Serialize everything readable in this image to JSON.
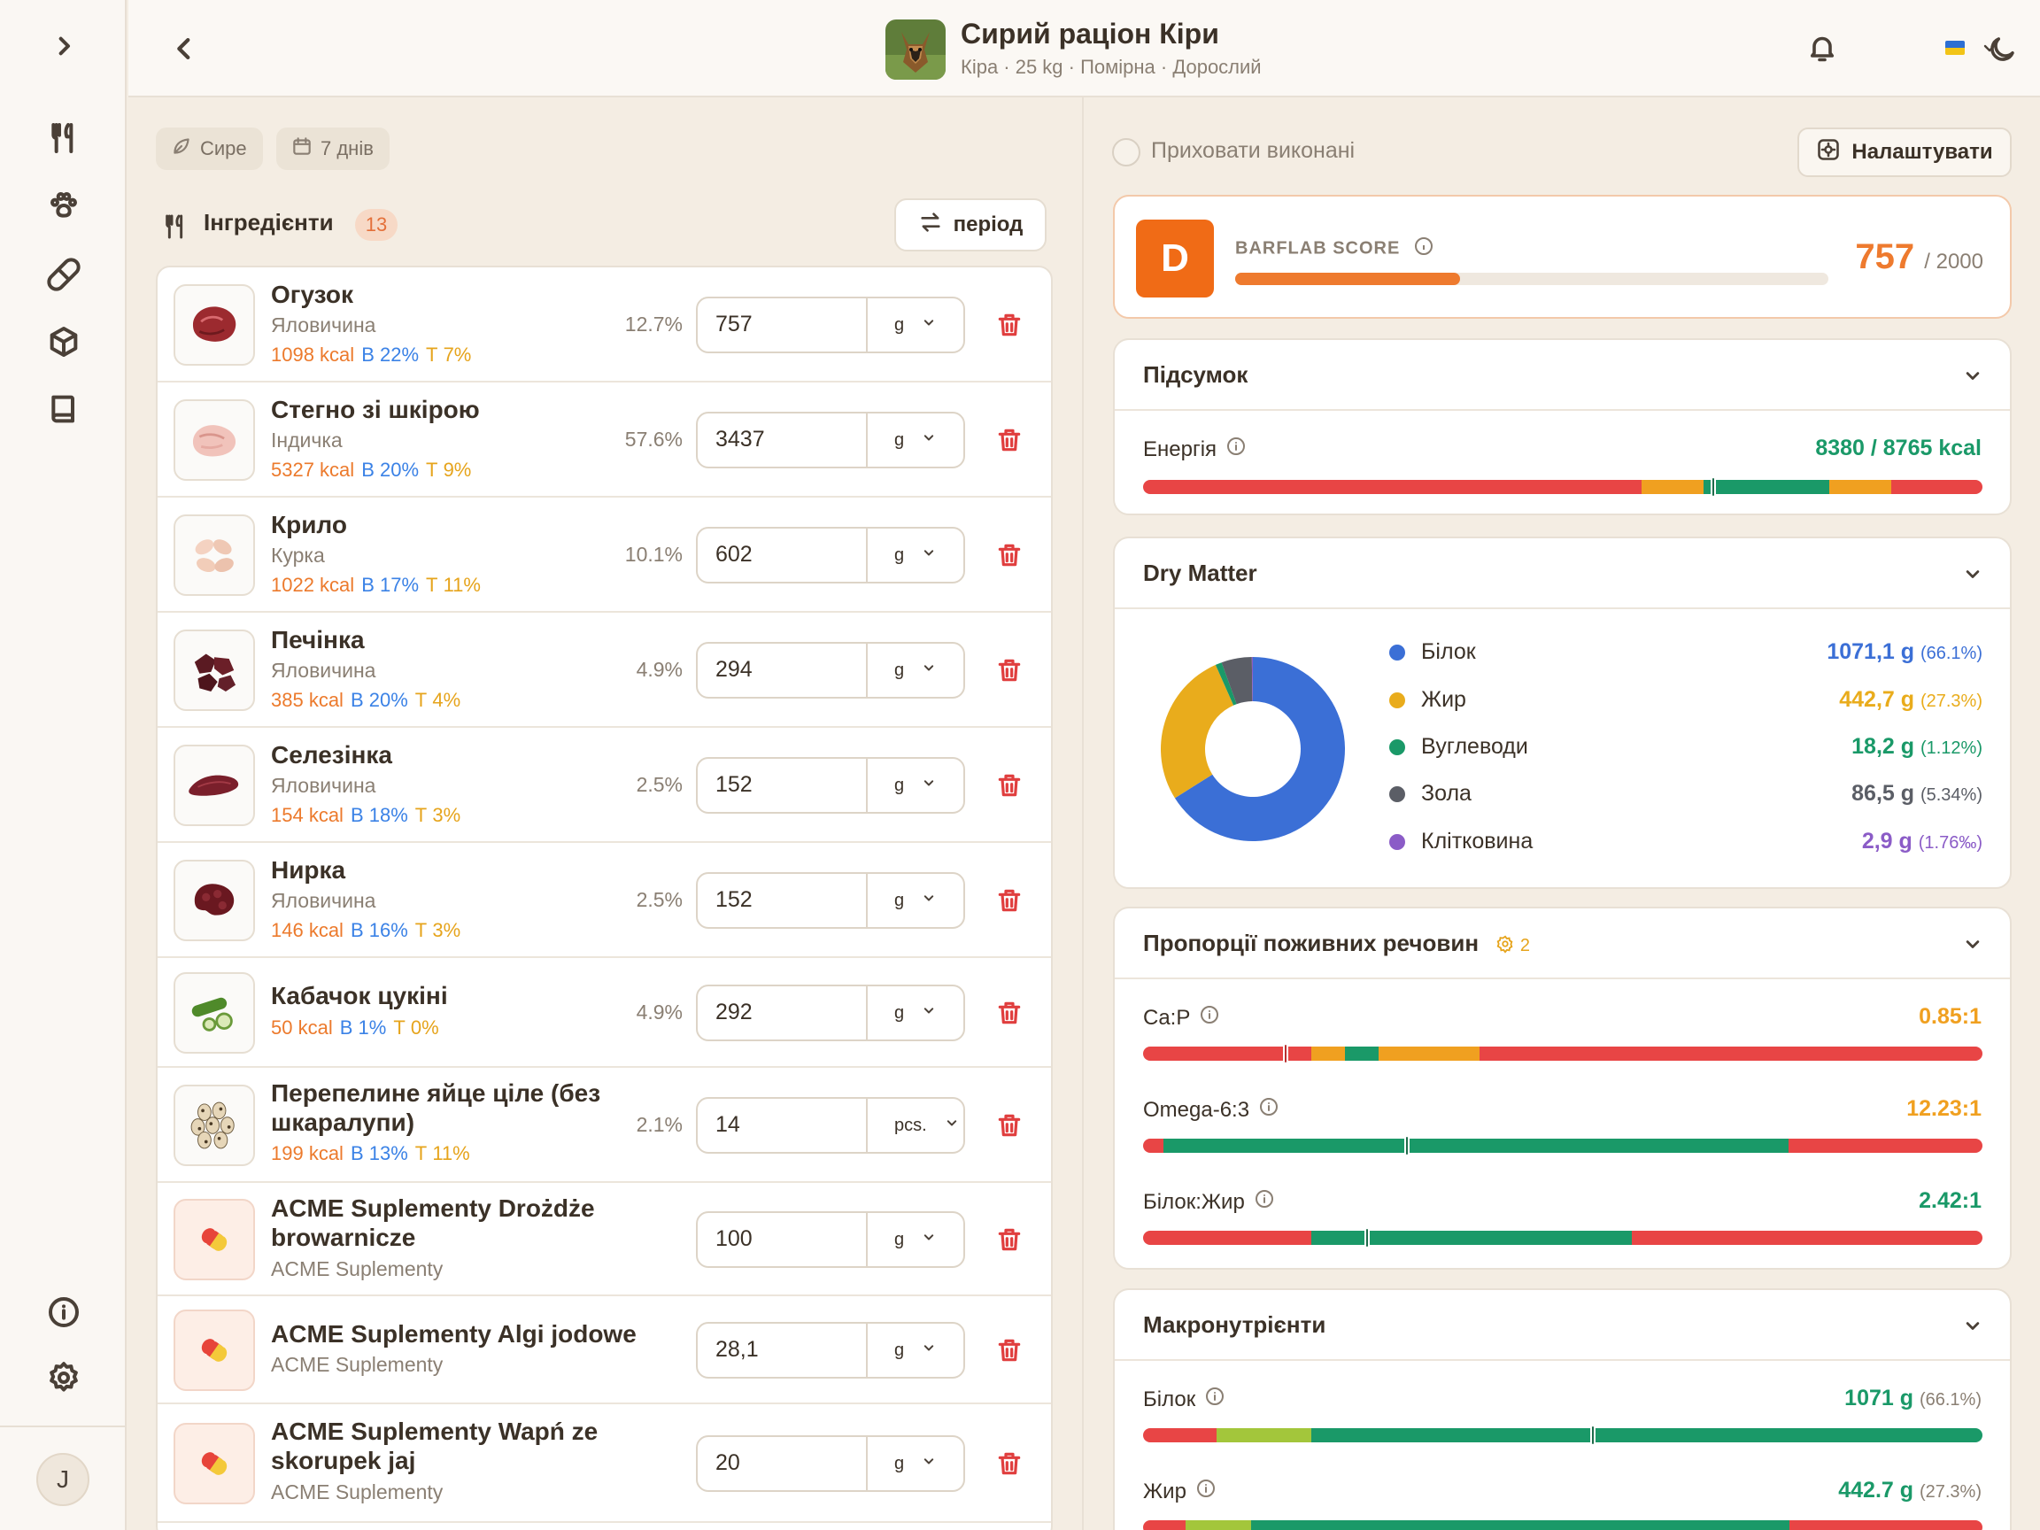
{
  "header": {
    "title": "Сирий раціон Кіри",
    "subtitle": "Кіра · 25 kg · Помірна · Дорослий"
  },
  "filters": {
    "type_chip": "Сире",
    "days_chip": "7 днів"
  },
  "ingredients": {
    "title": "Інгредієнти",
    "count": "13",
    "period_label": "період",
    "items": [
      {
        "name": "Огузок",
        "sub": "Яловичина",
        "kcal": "1098 kcal",
        "protein": "В 22%",
        "fat": "Т 7%",
        "pct": "12.7%",
        "qty": "757",
        "unit": "g",
        "thumb": "beef-icon"
      },
      {
        "name": "Стегно зі шкірою",
        "sub": "Індичка",
        "kcal": "5327 kcal",
        "protein": "В 20%",
        "fat": "Т 9%",
        "pct": "57.6%",
        "qty": "3437",
        "unit": "g",
        "thumb": "turkey-thigh-icon"
      },
      {
        "name": "Крило",
        "sub": "Курка",
        "kcal": "1022 kcal",
        "protein": "В 17%",
        "fat": "Т 11%",
        "pct": "10.1%",
        "qty": "602",
        "unit": "g",
        "thumb": "chicken-wing-icon"
      },
      {
        "name": "Печінка",
        "sub": "Яловичина",
        "kcal": "385 kcal",
        "protein": "В 20%",
        "fat": "Т 4%",
        "pct": "4.9%",
        "qty": "294",
        "unit": "g",
        "thumb": "liver-icon"
      },
      {
        "name": "Селезінка",
        "sub": "Яловичина",
        "kcal": "154 kcal",
        "protein": "В 18%",
        "fat": "Т 3%",
        "pct": "2.5%",
        "qty": "152",
        "unit": "g",
        "thumb": "spleen-icon"
      },
      {
        "name": "Нирка",
        "sub": "Яловичина",
        "kcal": "146 kcal",
        "protein": "В 16%",
        "fat": "Т 3%",
        "pct": "2.5%",
        "qty": "152",
        "unit": "g",
        "thumb": "kidney-icon"
      },
      {
        "name": "Кабачок цукіні",
        "sub": "",
        "kcal": "50 kcal",
        "protein": "В 1%",
        "fat": "Т 0%",
        "pct": "4.9%",
        "qty": "292",
        "unit": "g",
        "thumb": "zucchini-icon"
      },
      {
        "name": "Перепелине яйце ціле (без шкаралупи)",
        "sub": "",
        "kcal": "199 kcal",
        "protein": "В 13%",
        "fat": "Т 11%",
        "pct": "2.1%",
        "qty": "14",
        "unit": "pcs.",
        "thumb": "quail-eggs-icon"
      },
      {
        "name": "ACME Suplementy Drożdże browarnicze",
        "sub": "ACME Suplementy",
        "kcal": "",
        "protein": "",
        "fat": "",
        "pct": "",
        "qty": "100",
        "unit": "g",
        "thumb": "pill-icon"
      },
      {
        "name": "ACME Suplementy Algi jodowe",
        "sub": "ACME Suplementy",
        "kcal": "",
        "protein": "",
        "fat": "",
        "pct": "",
        "qty": "28,1",
        "unit": "g",
        "thumb": "pill-icon"
      },
      {
        "name": "ACME Suplementy Wapń ze skorupek jaj",
        "sub": "ACME Suplementy",
        "kcal": "",
        "protein": "",
        "fat": "",
        "pct": "",
        "qty": "20",
        "unit": "g",
        "thumb": "pill-icon"
      }
    ]
  },
  "right": {
    "hide_done_label": "Приховати виконані",
    "settings_label": "Налаштувати"
  },
  "score": {
    "grade": "D",
    "label": "BARFLAB SCORE",
    "value": "757",
    "max": "/ 2000",
    "fraction": 0.3785
  },
  "summary": {
    "title": "Підсумок",
    "energy_label": "Енергія",
    "energy_value": "8380 / 8765 kcal"
  },
  "dry_matter": {
    "title": "Dry Matter",
    "items": [
      {
        "name": "Білок",
        "value": "1071,1 g",
        "pct": "(66.1%)",
        "color": "#3b6fd6",
        "share": 66.1
      },
      {
        "name": "Жир",
        "value": "442,7 g",
        "pct": "(27.3%)",
        "color": "#e9ac1c",
        "share": 27.3
      },
      {
        "name": "Вуглеводи",
        "value": "18,2 g",
        "pct": "(1.12%)",
        "color": "#1a9968",
        "share": 1.12
      },
      {
        "name": "Зола",
        "value": "86,5 g",
        "pct": "(5.34%)",
        "color": "#5b5e66",
        "share": 5.34
      },
      {
        "name": "Клітковина",
        "value": "2,9 g",
        "pct": "(1.76‰)",
        "color": "#8b5cc7",
        "share": 0.18
      }
    ]
  },
  "ratios": {
    "title": "Пропорції поживних речовин",
    "badge": "2",
    "items": [
      {
        "label": "Ca:P",
        "value": "0.85:1",
        "color": "#f0a020"
      },
      {
        "label": "Omega-6:3",
        "value": "12.23:1",
        "color": "#f0a020"
      },
      {
        "label": "Білок:Жир",
        "value": "2.42:1",
        "color": "#1a9968"
      }
    ]
  },
  "macros": {
    "title": "Макронутрієнти",
    "items": [
      {
        "label": "Білок",
        "value": "1071 g",
        "pct": "(66.1%)"
      },
      {
        "label": "Жир",
        "value": "442.7 g",
        "pct": "(27.3%)"
      }
    ]
  }
}
